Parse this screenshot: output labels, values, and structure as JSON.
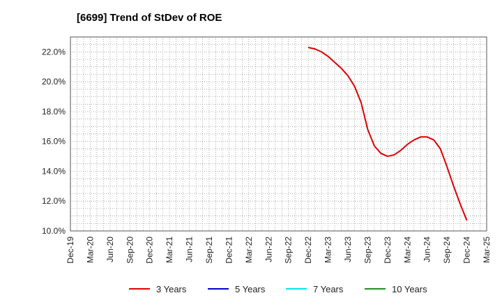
{
  "chart_data": {
    "type": "line",
    "title": "[6699]  Trend of StDev of ROE",
    "xlabel": "",
    "ylabel": "",
    "ylim": [
      10.0,
      23.0
    ],
    "y_ticks": [
      "10.0%",
      "12.0%",
      "14.0%",
      "16.0%",
      "18.0%",
      "20.0%",
      "22.0%"
    ],
    "y_tick_values": [
      10,
      12,
      14,
      16,
      18,
      20,
      22
    ],
    "x_ticks": [
      "Dec-19",
      "Mar-20",
      "Jun-20",
      "Sep-20",
      "Dec-20",
      "Mar-21",
      "Jun-21",
      "Sep-21",
      "Dec-21",
      "Mar-22",
      "Jun-22",
      "Sep-22",
      "Dec-22",
      "Mar-23",
      "Jun-23",
      "Sep-23",
      "Dec-23",
      "Mar-24",
      "Jun-24",
      "Sep-24",
      "Dec-24",
      "Mar-25",
      "Jun-25"
    ],
    "grid": true,
    "legend_position": "bottom",
    "series": [
      {
        "name": "3 Years",
        "color": "#dd0000",
        "x": [
          "Dec-22",
          "Jan-23",
          "Feb-23",
          "Mar-23",
          "Apr-23",
          "May-23",
          "Jun-23",
          "Jul-23",
          "Aug-23",
          "Sep-23",
          "Oct-23",
          "Nov-23",
          "Dec-23",
          "Jan-24",
          "Feb-24",
          "Mar-24",
          "Apr-24",
          "May-24",
          "Jun-24",
          "Jul-24",
          "Aug-24",
          "Sep-24",
          "Oct-24",
          "Nov-24",
          "Dec-24"
        ],
        "values": [
          22.3,
          22.2,
          22.0,
          21.7,
          21.3,
          20.9,
          20.4,
          19.7,
          18.6,
          16.8,
          15.7,
          15.2,
          15.0,
          15.1,
          15.4,
          15.8,
          16.1,
          16.3,
          16.3,
          16.1,
          15.5,
          14.3,
          13.0,
          11.8,
          10.7
        ]
      },
      {
        "name": "5 Years",
        "color": "#0000cc",
        "x": [],
        "values": []
      },
      {
        "name": "7 Years",
        "color": "#00e5ee",
        "x": [],
        "values": []
      },
      {
        "name": "10 Years",
        "color": "#228b22",
        "x": [],
        "values": []
      }
    ]
  }
}
